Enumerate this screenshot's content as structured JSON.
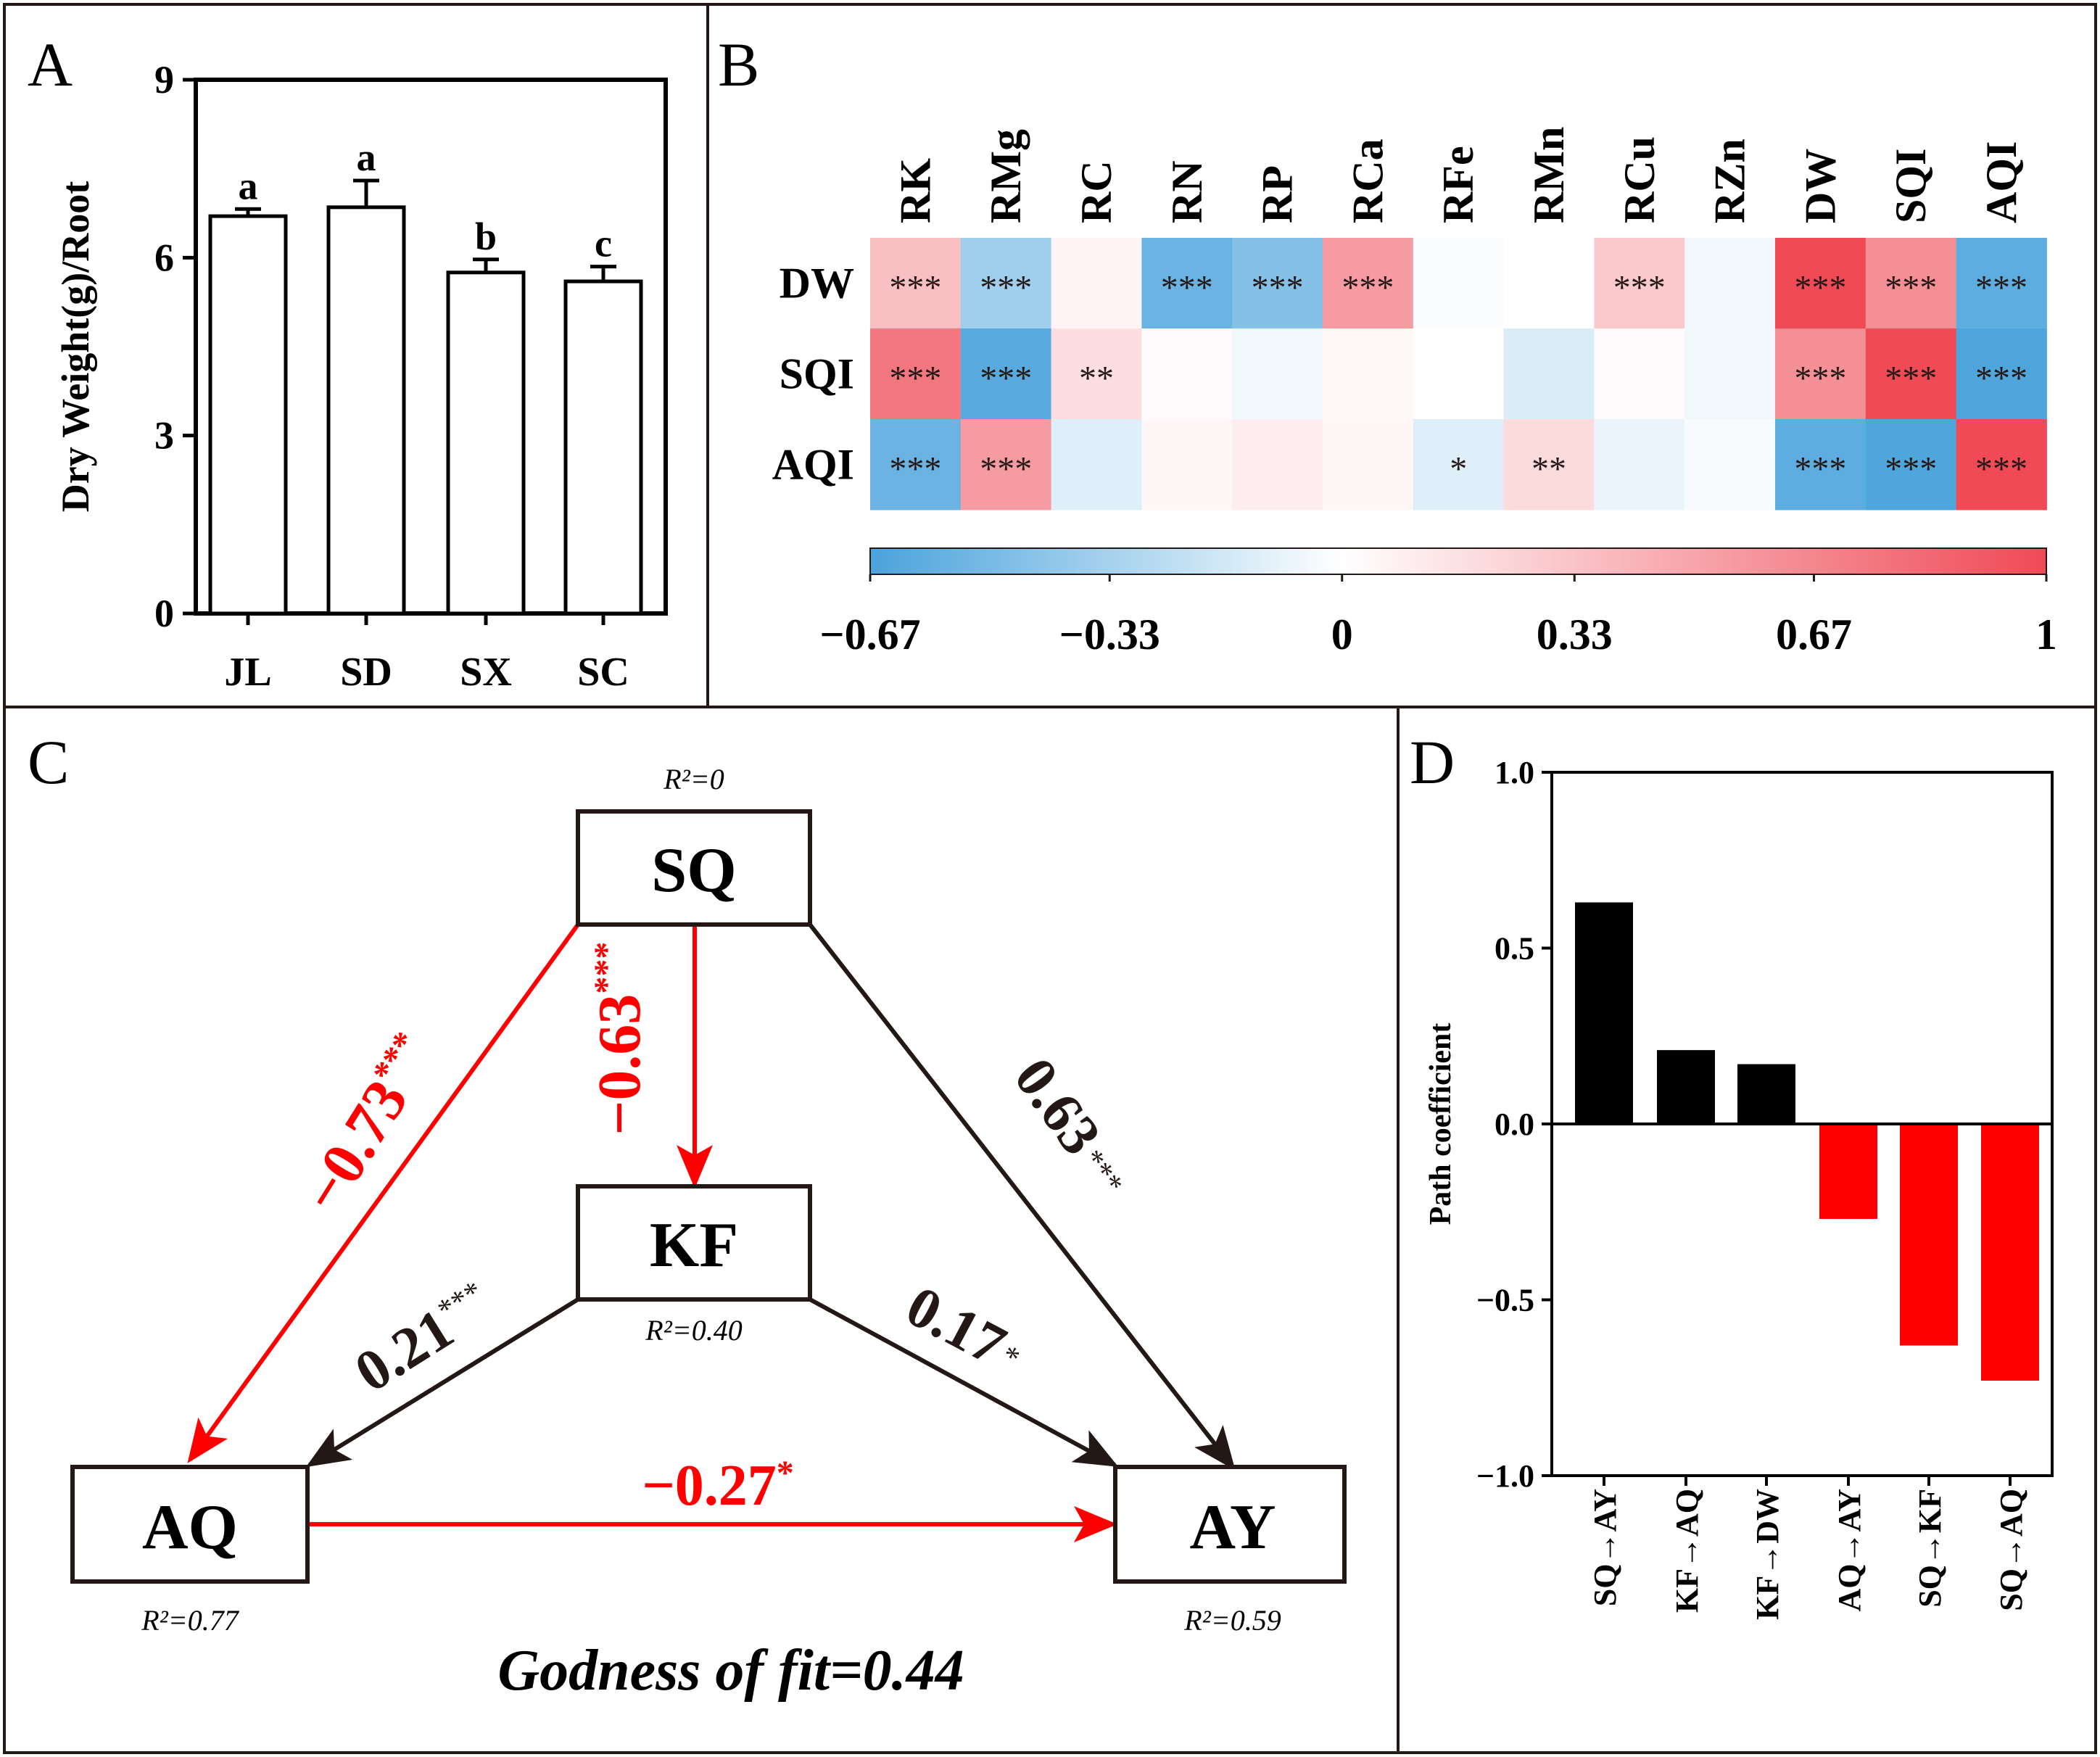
{
  "panel_letters": {
    "a": "A",
    "b": "B",
    "c": "C",
    "d": "D"
  },
  "colors": {
    "red": "#ff0000",
    "black": "#000000",
    "arrow_dark": "#231815",
    "heat_neg": "#4aa3dc",
    "heat_zero": "#ffffff",
    "heat_pos": "#ef4a56"
  },
  "chart_data": [
    {
      "id": "A",
      "type": "bar",
      "ylabel": "Dry Weight(g)/Root",
      "ylim": [
        0,
        9
      ],
      "yticks": [
        "0",
        "3",
        "6",
        "9"
      ],
      "categories": [
        "JL",
        "SD",
        "SX",
        "SC"
      ],
      "values": [
        6.7,
        6.85,
        5.75,
        5.6
      ],
      "errors": [
        0.12,
        0.45,
        0.22,
        0.25
      ],
      "letters": [
        "a",
        "a",
        "b",
        "c"
      ]
    },
    {
      "id": "B",
      "type": "heatmap",
      "columns": [
        "RK",
        "RMg",
        "RC",
        "RN",
        "RP",
        "RCa",
        "RFe",
        "RMn",
        "RCu",
        "RZn",
        "DW",
        "SQI",
        "AQI"
      ],
      "rows": [
        "DW",
        "SQI",
        "AQI"
      ],
      "values": [
        [
          0.35,
          -0.35,
          0.06,
          -0.55,
          -0.45,
          0.55,
          -0.02,
          0.0,
          0.3,
          -0.05,
          1.0,
          0.62,
          -0.6
        ],
        [
          0.75,
          -0.62,
          0.18,
          0.02,
          -0.05,
          0.04,
          0.0,
          -0.14,
          0.02,
          -0.05,
          0.62,
          1.0,
          -0.65
        ],
        [
          -0.55,
          0.55,
          -0.12,
          0.05,
          0.1,
          0.05,
          -0.12,
          0.2,
          -0.08,
          -0.03,
          -0.6,
          -0.65,
          1.0
        ]
      ],
      "significance": [
        [
          "***",
          "***",
          "",
          "***",
          "***",
          "***",
          "",
          "",
          "***",
          "",
          "***",
          "***",
          "***"
        ],
        [
          "***",
          "***",
          "**",
          "",
          "",
          "",
          "",
          "",
          "",
          "",
          "***",
          "***",
          "***"
        ],
        [
          "***",
          "***",
          "",
          "",
          "",
          "",
          "*",
          "**",
          "",
          "",
          "***",
          "***",
          "***"
        ]
      ],
      "colorbar": {
        "min": -0.67,
        "max": 1,
        "ticks": [
          "−0.67",
          "−0.33",
          "0",
          "0.33",
          "0.67",
          "1"
        ]
      }
    },
    {
      "id": "C",
      "type": "path-diagram",
      "nodes": [
        {
          "id": "SQ",
          "label": "SQ",
          "r2": "R²=0"
        },
        {
          "id": "KF",
          "label": "KF",
          "r2": "R²=0.40"
        },
        {
          "id": "AQ",
          "label": "AQ",
          "r2": "R²=0.77"
        },
        {
          "id": "AY",
          "label": "AY",
          "r2": "R²=0.59"
        }
      ],
      "edges": [
        {
          "from": "SQ",
          "to": "AQ",
          "coef": "−0.73",
          "sig": "***",
          "sign": "negative"
        },
        {
          "from": "SQ",
          "to": "KF",
          "coef": "−0.63",
          "sig": "***",
          "sign": "negative"
        },
        {
          "from": "SQ",
          "to": "AY",
          "coef": "0.63",
          "sig": "***",
          "sign": "positive"
        },
        {
          "from": "KF",
          "to": "AQ",
          "coef": "0.21",
          "sig": "***",
          "sign": "positive"
        },
        {
          "from": "KF",
          "to": "AY",
          "coef": "0.17",
          "sig": "*",
          "sign": "positive"
        },
        {
          "from": "AQ",
          "to": "AY",
          "coef": "−0.27",
          "sig": "*",
          "sign": "negative"
        }
      ],
      "goodness_of_fit": "Godness of fit=0.44"
    },
    {
      "id": "D",
      "type": "bar",
      "ylabel": "Path coefficient",
      "ylim": [
        -1,
        1
      ],
      "yticks": [
        "−1.0",
        "−0.5",
        "0.0",
        "0.5",
        "1.0"
      ],
      "categories": [
        "SQ→AY",
        "KF→AQ",
        "KF→DW",
        "AQ→AY",
        "SQ→KF",
        "SQ→AQ"
      ],
      "values": [
        0.63,
        0.21,
        0.17,
        -0.27,
        -0.63,
        -0.73
      ]
    }
  ]
}
